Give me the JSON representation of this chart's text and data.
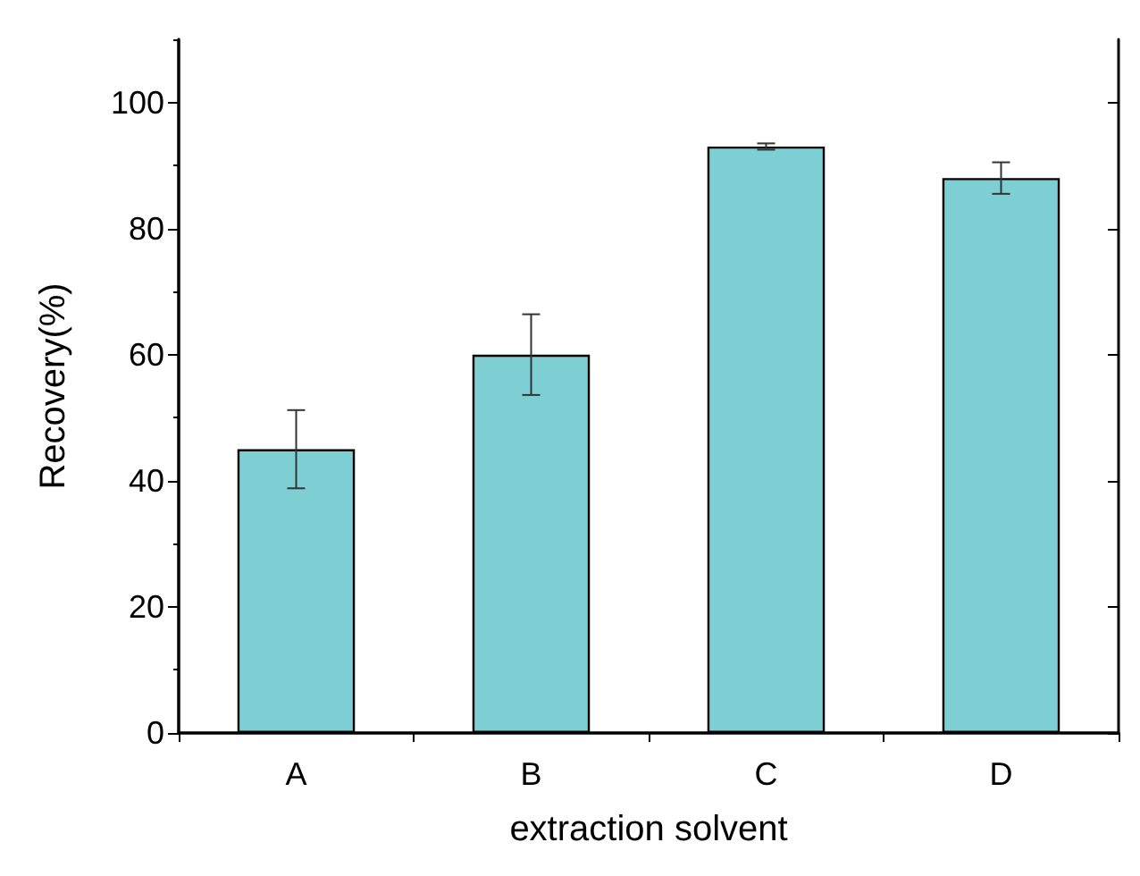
{
  "chart_data": {
    "type": "bar",
    "xlabel": "extraction solvent",
    "ylabel": "Recovery(%)",
    "categories": [
      "A",
      "B",
      "C",
      "D"
    ],
    "values": [
      45,
      60,
      93,
      88
    ],
    "errors": [
      6.2,
      6.4,
      0.5,
      2.5
    ],
    "color": "#7ecfd3",
    "ylim": [
      0,
      110
    ],
    "yticks": [
      0,
      20,
      40,
      60,
      80,
      100
    ],
    "grid": false
  }
}
